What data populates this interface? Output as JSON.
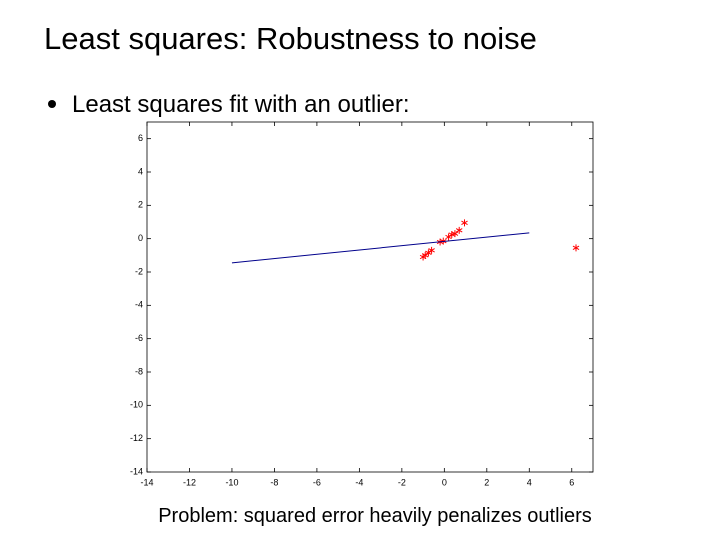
{
  "slide": {
    "title": "Least squares: Robustness to noise",
    "bullet": "Least squares fit with an outlier:",
    "caption": "Problem: squared error heavily penalizes outliers"
  },
  "chart_data": {
    "type": "scatter",
    "xlim": [
      -14,
      7
    ],
    "ylim": [
      -14,
      7
    ],
    "xticks": [
      -14,
      -12,
      -10,
      -8,
      -6,
      -4,
      -2,
      0,
      2,
      4,
      6
    ],
    "yticks": [
      -14,
      -12,
      -10,
      -8,
      -6,
      -4,
      -2,
      0,
      2,
      4,
      6
    ],
    "series": [
      {
        "type": "scatter",
        "color": "#ff0000",
        "marker": "*",
        "x": [
          -1,
          -0.9,
          -0.75,
          -0.6,
          -0.2,
          -0.05,
          0.2,
          0.35,
          0.5,
          0.7,
          0.95,
          6.2
        ],
        "values": [
          -1.1,
          -1.0,
          -0.85,
          -0.7,
          -0.2,
          -0.15,
          0.1,
          0.25,
          0.3,
          0.5,
          0.95,
          -0.55
        ]
      },
      {
        "type": "line",
        "color": "#00008b",
        "x": [
          -10,
          4
        ],
        "values": [
          -1.45,
          0.35
        ]
      }
    ]
  }
}
